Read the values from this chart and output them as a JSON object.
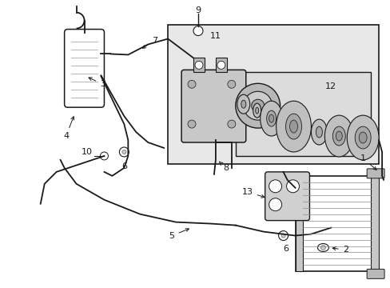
{
  "bg_color": "#ffffff",
  "line_color": "#1a1a1a",
  "gray_box": "#e0e0e0",
  "gray_box2": "#d0d0d0",
  "figsize": [
    4.89,
    3.6
  ],
  "dpi": 100,
  "label_fontsize": 8
}
